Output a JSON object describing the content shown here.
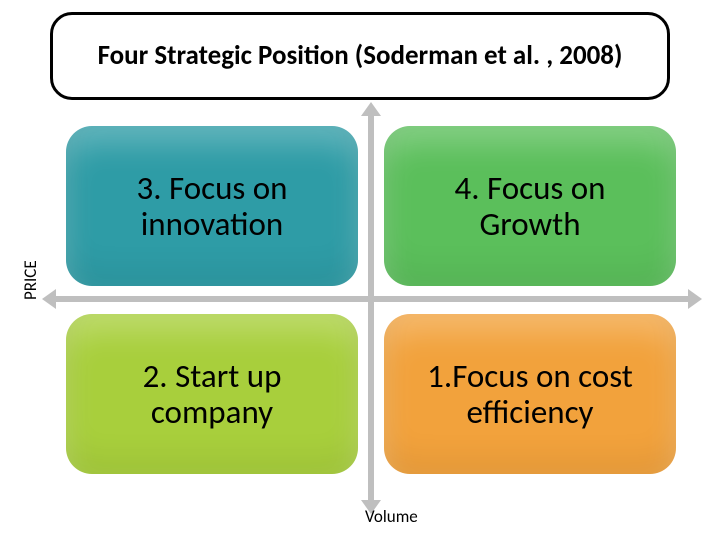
{
  "title": "Four Strategic Position (Soderman et al. , 2008)",
  "title_fontsize": 27,
  "axes": {
    "y_label": "PRICE",
    "x_label": "Volume",
    "label_fontsize": 17,
    "axis_color": "#bfbfbf"
  },
  "quadrants": {
    "tl": {
      "label": "3. Focus on innovation",
      "color": "#2e9ca6"
    },
    "tr": {
      "label": "4.  Focus on Growth",
      "color": "#5bbf5b"
    },
    "bl": {
      "label": "2. Start up company",
      "color": "#a8cf3c"
    },
    "br": {
      "label": "1.Focus on cost efficiency",
      "color": "#f2a23c"
    }
  },
  "quad_fontsize": 33,
  "quad_text_color": "#000000",
  "border_radius": 26,
  "background_color": "#ffffff"
}
